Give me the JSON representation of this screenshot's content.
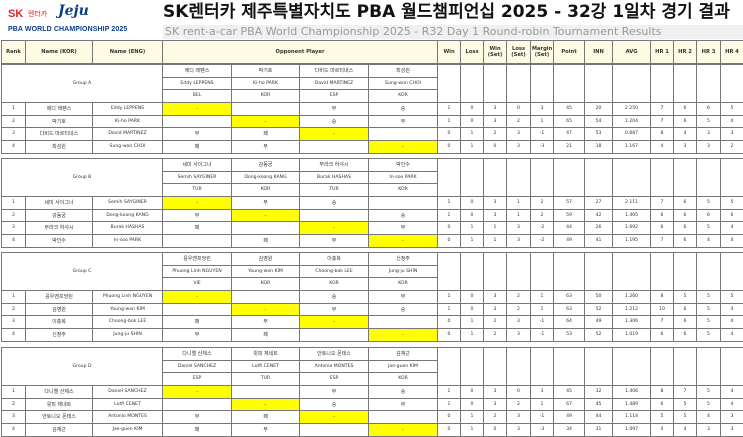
{
  "header": {
    "logo": {
      "sk": "SK",
      "rentacar": "렌터카",
      "jeju": "Jeju",
      "wc": "PBA WORLD CHAMPIONSHIP 2025"
    },
    "title": "SK렌터카 제주특별자치도 PBA 월드챔피언십 2025 - 32강 1일차 경기 결과",
    "subtitle": "SK rent-a-car PBA World Championship 2025 - R32 Day 1 Round-robin Tournament Results"
  },
  "columns": [
    "Rank",
    "Name (KOR)",
    "Name (ENG)",
    "Opponent Player",
    "Win",
    "Loss",
    "Win (Set)",
    "Loss (Set)",
    "Margin (Set)",
    "Point",
    "INN",
    "AVG",
    "HR 1",
    "HR 2",
    "HR 3",
    "HR 4"
  ],
  "colors": {
    "self_cell": "#ffff00",
    "header_bg": "#fdfbe3"
  },
  "groups": [
    {
      "name": "Group A",
      "players": [
        {
          "rank": "1",
          "kor": "에디 레펜스",
          "eng": "Eddy LEPPENS",
          "nat": "BEL",
          "results": [
            "-",
            "",
            "무",
            "승"
          ],
          "stats": [
            "1",
            "0",
            "3",
            "0",
            "3",
            "45",
            "20",
            "2.250",
            "7",
            "6",
            "6",
            "5"
          ]
        },
        {
          "rank": "2",
          "kor": "박기호",
          "eng": "Ki-ho PARK",
          "nat": "KOR",
          "results": [
            "",
            "-",
            "승",
            "무"
          ],
          "stats": [
            "1",
            "0",
            "3",
            "2",
            "1",
            "65",
            "54",
            "1.204",
            "7",
            "6",
            "5",
            "4"
          ]
        },
        {
          "rank": "3",
          "kor": "다비드 마르티네스",
          "eng": "David MARTINEZ",
          "nat": "ESP",
          "results": [
            "무",
            "패",
            "-",
            ""
          ],
          "stats": [
            "0",
            "1",
            "2",
            "3",
            "-1",
            "47",
            "53",
            "0.887",
            "8",
            "4",
            "3",
            "3"
          ]
        },
        {
          "rank": "4",
          "kor": "최성원",
          "eng": "Sung-won CHOI",
          "nat": "KOR",
          "results": [
            "패",
            "무",
            "",
            "-"
          ],
          "stats": [
            "0",
            "1",
            "0",
            "3",
            "-3",
            "21",
            "18",
            "1.167",
            "4",
            "3",
            "3",
            "2"
          ]
        }
      ]
    },
    {
      "name": "Group B",
      "players": [
        {
          "rank": "1",
          "kor": "세미 사이그너",
          "eng": "Semih SAYGINER",
          "nat": "TUR",
          "results": [
            "-",
            "무",
            "승",
            ""
          ],
          "stats": [
            "1",
            "0",
            "3",
            "1",
            "2",
            "57",
            "27",
            "2.111",
            "7",
            "6",
            "5",
            "5"
          ]
        },
        {
          "rank": "2",
          "kor": "강동궁",
          "eng": "Dong-koong KANG",
          "nat": "KOR",
          "results": [
            "무",
            "-",
            "",
            "승"
          ],
          "stats": [
            "1",
            "0",
            "3",
            "1",
            "2",
            "59",
            "42",
            "1.405",
            "6",
            "6",
            "6",
            "6"
          ]
        },
        {
          "rank": "3",
          "kor": "부라크 하샤시",
          "eng": "Burak HASHAS",
          "nat": "TUR",
          "results": [
            "패",
            "",
            "-",
            "무"
          ],
          "stats": [
            "0",
            "1",
            "1",
            "3",
            "-2",
            "44",
            "26",
            "1.692",
            "6",
            "6",
            "5",
            "4"
          ]
        },
        {
          "rank": "4",
          "kor": "박인수",
          "eng": "In-soo PARK",
          "nat": "KOR",
          "results": [
            "",
            "패",
            "무",
            "-"
          ],
          "stats": [
            "0",
            "1",
            "1",
            "3",
            "-2",
            "49",
            "41",
            "1.195",
            "7",
            "6",
            "4",
            "4"
          ]
        }
      ]
    },
    {
      "name": "Group C",
      "players": [
        {
          "rank": "1",
          "kor": "응우옌프엉린",
          "eng": "Phuong Linh NGUYEN",
          "nat": "VIE",
          "results": [
            "-",
            "",
            "승",
            "무"
          ],
          "stats": [
            "1",
            "0",
            "3",
            "2",
            "1",
            "63",
            "50",
            "1.260",
            "8",
            "5",
            "5",
            "5"
          ]
        },
        {
          "rank": "2",
          "kor": "김영원",
          "eng": "Young-won KIM",
          "nat": "KOR",
          "results": [
            "",
            "-",
            "무",
            "승"
          ],
          "stats": [
            "1",
            "0",
            "3",
            "2",
            "1",
            "63",
            "52",
            "1.212",
            "10",
            "6",
            "5",
            "4"
          ]
        },
        {
          "rank": "3",
          "kor": "이충복",
          "eng": "Choong-bok LEE",
          "nat": "KOR",
          "results": [
            "패",
            "무",
            "-",
            ""
          ],
          "stats": [
            "0",
            "1",
            "2",
            "3",
            "-1",
            "64",
            "49",
            "1.306",
            "7",
            "6",
            "5",
            "4"
          ]
        },
        {
          "rank": "4",
          "kor": "신정주",
          "eng": "Jung-ju SHIN",
          "nat": "KOR",
          "results": [
            "무",
            "패",
            "",
            "-"
          ],
          "stats": [
            "0",
            "1",
            "2",
            "3",
            "-1",
            "53",
            "52",
            "1.019",
            "6",
            "6",
            "5",
            "4"
          ]
        }
      ]
    },
    {
      "name": "Group D",
      "players": [
        {
          "rank": "1",
          "kor": "다니엘 산체스",
          "eng": "Daniel SANCHEZ",
          "nat": "ESP",
          "results": [
            "-",
            "",
            "무",
            "승"
          ],
          "stats": [
            "1",
            "0",
            "3",
            "0",
            "3",
            "45",
            "32",
            "1.406",
            "8",
            "7",
            "5",
            "4"
          ]
        },
        {
          "rank": "2",
          "kor": "륏피 체네트",
          "eng": "Lutfi CENET",
          "nat": "TUR",
          "results": [
            "",
            "-",
            "승",
            "무"
          ],
          "stats": [
            "1",
            "0",
            "3",
            "2",
            "1",
            "67",
            "45",
            "1.489",
            "6",
            "5",
            "5",
            "4"
          ]
        },
        {
          "rank": "3",
          "kor": "안토니오 몬테스",
          "eng": "Antonio MONTES",
          "nat": "ESP",
          "results": [
            "무",
            "패",
            "-",
            ""
          ],
          "stats": [
            "0",
            "1",
            "2",
            "3",
            "-1",
            "49",
            "44",
            "1.114",
            "5",
            "5",
            "4",
            "3"
          ]
        },
        {
          "rank": "4",
          "kor": "김재근",
          "eng": "Jae-guen KIM",
          "nat": "KOR",
          "results": [
            "패",
            "무",
            "",
            "-"
          ],
          "stats": [
            "0",
            "1",
            "0",
            "3",
            "-3",
            "34",
            "31",
            "1.097",
            "4",
            "4",
            "3",
            "3"
          ]
        }
      ]
    }
  ]
}
